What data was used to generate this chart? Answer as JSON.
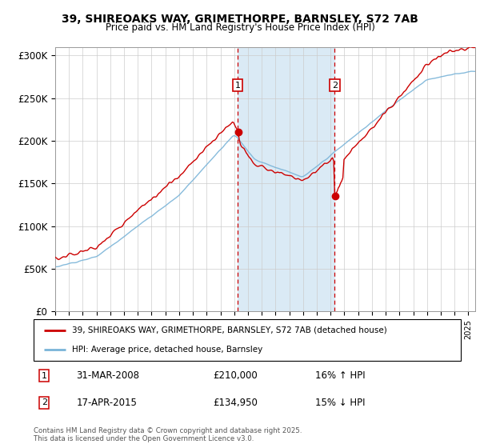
{
  "title_line1": "39, SHIREOAKS WAY, GRIMETHORPE, BARNSLEY, S72 7AB",
  "title_line2": "Price paid vs. HM Land Registry's House Price Index (HPI)",
  "ylim": [
    0,
    310000
  ],
  "yticks": [
    0,
    50000,
    100000,
    150000,
    200000,
    250000,
    300000
  ],
  "ytick_labels": [
    "£0",
    "£50K",
    "£100K",
    "£150K",
    "£200K",
    "£250K",
    "£300K"
  ],
  "sale1_date": 2008.25,
  "sale1_price": 210000,
  "sale1_label": "1",
  "sale1_text": "31-MAR-2008",
  "sale1_price_text": "£210,000",
  "sale1_hpi_text": "16% ↑ HPI",
  "sale2_date": 2015.29,
  "sale2_price": 134950,
  "sale2_label": "2",
  "sale2_text": "17-APR-2015",
  "sale2_price_text": "£134,950",
  "sale2_hpi_text": "15% ↓ HPI",
  "hpi_color": "#7ab4d8",
  "price_color": "#cc0000",
  "shade_color": "#daeaf5",
  "legend_label1": "39, SHIREOAKS WAY, GRIMETHORPE, BARNSLEY, S72 7AB (detached house)",
  "legend_label2": "HPI: Average price, detached house, Barnsley",
  "footer": "Contains HM Land Registry data © Crown copyright and database right 2025.\nThis data is licensed under the Open Government Licence v3.0.",
  "background_color": "#ffffff",
  "grid_color": "#cccccc"
}
